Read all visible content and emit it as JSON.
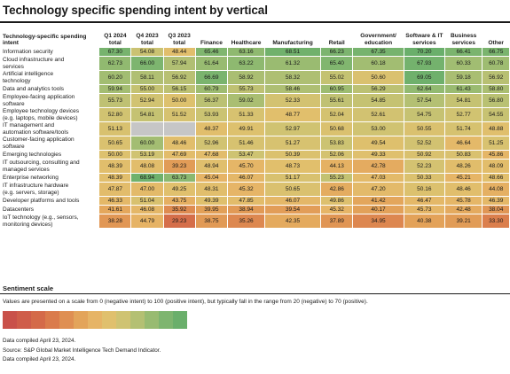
{
  "title": "Technology specific spending intent by vertical",
  "row_header": "Technology-specific spending intent",
  "columns": [
    "Q1 2024 total",
    "Q4 2023 total",
    "Q3 2023 total",
    "Finance",
    "Healthcare",
    "Manufacturing",
    "Retail",
    "Government/ education",
    "Software & IT services",
    "Business services",
    "Other"
  ],
  "chart_data": {
    "type": "heatmap",
    "title": "Technology specific spending intent by vertical",
    "x": [
      "Q1 2024 total",
      "Q4 2023 total",
      "Q3 2023 total",
      "Finance",
      "Healthcare",
      "Manufacturing",
      "Retail",
      "Government/ education",
      "Software & IT services",
      "Business services",
      "Other"
    ],
    "y": [
      "Information security",
      "Cloud infrastructure and services",
      "Artificial intelligence technology",
      "Data and analytics tools",
      "Employee-facing application software",
      "Employee technology devices (e.g. laptops, mobile devices)",
      "IT management and automation software/tools",
      "Customer-facing application software",
      "Emerging technologies",
      "IT outsourcing, consulting and managed services",
      "Enterprise networking",
      "IT infrastructure hardware (e.g. servers, storage)",
      "Developer platforms and tools",
      "Datacenters",
      "IoT technology (e.g., sensors, monitoring devices)"
    ],
    "values": [
      [
        67.3,
        54.08,
        48.44,
        65.46,
        63.16,
        68.51,
        66.23,
        67.35,
        70.2,
        66.41,
        66.75
      ],
      [
        62.73,
        66.0,
        57.94,
        61.64,
        63.22,
        61.32,
        65.4,
        60.18,
        67.93,
        60.33,
        60.78
      ],
      [
        60.2,
        58.11,
        56.92,
        66.69,
        58.92,
        58.32,
        55.02,
        50.6,
        69.05,
        59.18,
        56.92
      ],
      [
        59.94,
        55.0,
        56.15,
        60.79,
        55.73,
        58.46,
        60.95,
        56.29,
        62.64,
        61.43,
        58.8
      ],
      [
        55.73,
        52.94,
        50.0,
        56.37,
        59.02,
        52.33,
        55.61,
        54.85,
        57.54,
        54.81,
        56.8
      ],
      [
        52.8,
        54.81,
        51.52,
        53.93,
        51.33,
        48.77,
        52.04,
        52.61,
        54.75,
        52.77,
        54.55
      ],
      [
        51.13,
        null,
        null,
        48.37,
        49.91,
        52.97,
        50.68,
        53.0,
        50.55,
        51.74,
        48.88
      ],
      [
        50.65,
        60.0,
        48.46,
        52.96,
        51.46,
        51.27,
        53.83,
        49.54,
        52.52,
        46.64,
        51.25
      ],
      [
        50.0,
        53.19,
        47.69,
        47.68,
        53.47,
        50.39,
        52.06,
        49.33,
        50.92,
        50.83,
        45.86
      ],
      [
        48.39,
        48.08,
        39.23,
        48.94,
        45.7,
        48.73,
        44.13,
        42.78,
        52.23,
        48.26,
        48.09
      ],
      [
        48.39,
        68.94,
        63.73,
        45.04,
        46.07,
        51.17,
        55.23,
        47.03,
        50.33,
        45.21,
        48.66
      ],
      [
        47.87,
        47.0,
        49.25,
        48.31,
        45.32,
        50.65,
        42.86,
        47.2,
        50.16,
        48.46,
        44.08
      ],
      [
        46.33,
        51.04,
        43.75,
        49.39,
        47.85,
        46.07,
        49.86,
        41.42,
        46.47,
        45.78,
        46.39
      ],
      [
        41.61,
        46.08,
        35.92,
        39.95,
        38.94,
        39.54,
        45.32,
        40.17,
        45.73,
        42.48,
        38.04
      ],
      [
        38.28,
        44.79,
        29.23,
        38.75,
        35.26,
        42.35,
        37.89,
        34.95,
        40.38,
        39.21,
        33.3
      ]
    ],
    "scale": {
      "min": 20,
      "max": 70
    }
  },
  "row_labels": [
    [
      "Information security"
    ],
    [
      "Cloud infrastructure and",
      "services"
    ],
    [
      "Artificial intelligence",
      "technology"
    ],
    [
      "Data and analytics tools"
    ],
    [
      "Employee-facing application",
      "software"
    ],
    [
      "Employee technology devices",
      "(e.g. laptops, mobile devices)"
    ],
    [
      "IT management and",
      "automation software/tools"
    ],
    [
      "Customer-facing application",
      "software"
    ],
    [
      "Emerging technologies"
    ],
    [
      "IT outsourcing, consulting and",
      "managed services"
    ],
    [
      "Enterprise networking"
    ],
    [
      "IT infrastructure hardware",
      "(e.g. servers, storage)"
    ],
    [
      "Developer platforms and tools"
    ],
    [
      "Datacenters"
    ],
    [
      "IoT technology (e.g., sensors,",
      "monitoring devices)"
    ]
  ],
  "scale_section": {
    "title": "Sentiment scale",
    "description": "Values are presented on a scale from 0 (negative intent) to 100 (positive intent), but typically fall in the range from 20 (negative) to 70 (positive).",
    "colors": [
      "#c9514a",
      "#cf5d4a",
      "#d46a49",
      "#da7b4c",
      "#df8f52",
      "#e3a45a",
      "#e6b466",
      "#e0c06d",
      "#cfc372",
      "#b4c073",
      "#98bb71",
      "#7eb56f",
      "#6aaf6b"
    ]
  },
  "footnotes": [
    "Data compiled April 23, 2024.",
    "Source: S&P Global Market Intelligence Tech Demand Indicator.",
    "Data compiled April 23, 2024."
  ],
  "colors": {
    "missing": "#c6c6c6",
    "low": "#c9514a",
    "mid": "#e6b466",
    "high": "#6aaf6b"
  }
}
